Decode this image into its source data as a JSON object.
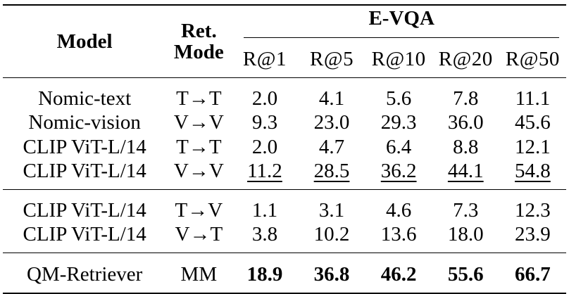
{
  "table": {
    "header": {
      "model": "Model",
      "mode_line1": "Ret.",
      "mode_line2": "Mode",
      "group": "E-VQA",
      "metrics": [
        "R@1",
        "R@5",
        "R@10",
        "R@20",
        "R@50"
      ]
    },
    "group1": [
      {
        "model": "Nomic-text",
        "mode": "T→T",
        "values": [
          "2.0",
          "4.1",
          "5.6",
          "7.8",
          "11.1"
        ]
      },
      {
        "model": "Nomic-vision",
        "mode": "V→V",
        "values": [
          "9.3",
          "23.0",
          "29.3",
          "36.0",
          "45.6"
        ]
      },
      {
        "model": "CLIP ViT-L/14",
        "mode": "T→T",
        "values": [
          "2.0",
          "4.7",
          "6.4",
          "8.8",
          "12.1"
        ]
      },
      {
        "model": "CLIP ViT-L/14",
        "mode": "V→V",
        "values": [
          "11.2",
          "28.5",
          "36.2",
          "44.1",
          "54.8"
        ]
      }
    ],
    "group2": [
      {
        "model": "CLIP ViT-L/14",
        "mode": "T→V",
        "values": [
          "1.1",
          "3.1",
          "4.6",
          "7.3",
          "12.3"
        ]
      },
      {
        "model": "CLIP ViT-L/14",
        "mode": "V→T",
        "values": [
          "3.8",
          "10.2",
          "13.6",
          "18.0",
          "23.9"
        ]
      }
    ],
    "final": {
      "model": "QM-Retriever",
      "mode": "MM",
      "values": [
        "18.9",
        "36.8",
        "46.2",
        "55.6",
        "66.7"
      ]
    }
  }
}
